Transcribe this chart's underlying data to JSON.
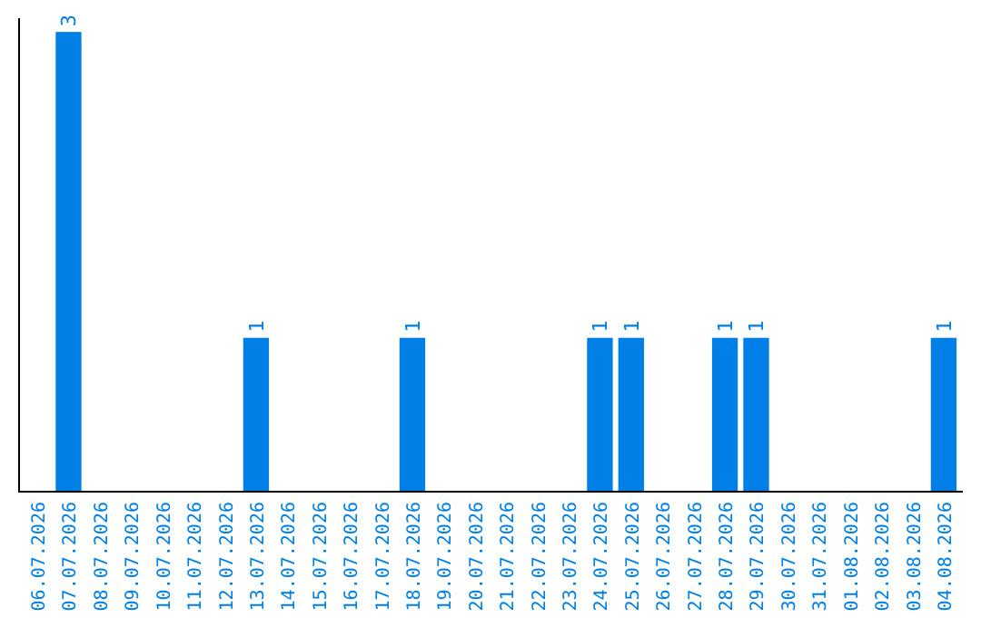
{
  "chart_data": {
    "type": "bar",
    "categories": [
      "06.07.2026",
      "07.07.2026",
      "08.07.2026",
      "09.07.2026",
      "10.07.2026",
      "11.07.2026",
      "12.07.2026",
      "13.07.2026",
      "14.07.2026",
      "15.07.2026",
      "16.07.2026",
      "17.07.2026",
      "18.07.2026",
      "19.07.2026",
      "20.07.2026",
      "21.07.2026",
      "22.07.2026",
      "23.07.2026",
      "24.07.2026",
      "25.07.2026",
      "26.07.2026",
      "27.07.2026",
      "28.07.2026",
      "29.07.2026",
      "30.07.2026",
      "31.07.2026",
      "01.08.2026",
      "02.08.2026",
      "03.08.2026",
      "04.08.2026"
    ],
    "values": [
      0,
      3,
      0,
      0,
      0,
      0,
      0,
      1,
      0,
      0,
      0,
      0,
      1,
      0,
      0,
      0,
      0,
      0,
      1,
      1,
      0,
      0,
      1,
      1,
      0,
      0,
      0,
      0,
      0,
      1
    ],
    "value_labels": [
      null,
      "3",
      null,
      null,
      null,
      null,
      null,
      "1",
      null,
      null,
      null,
      null,
      "1",
      null,
      null,
      null,
      null,
      null,
      "1",
      "1",
      null,
      null,
      "1",
      "1",
      null,
      null,
      null,
      null,
      null,
      "1"
    ],
    "color": "#0080e6"
  }
}
